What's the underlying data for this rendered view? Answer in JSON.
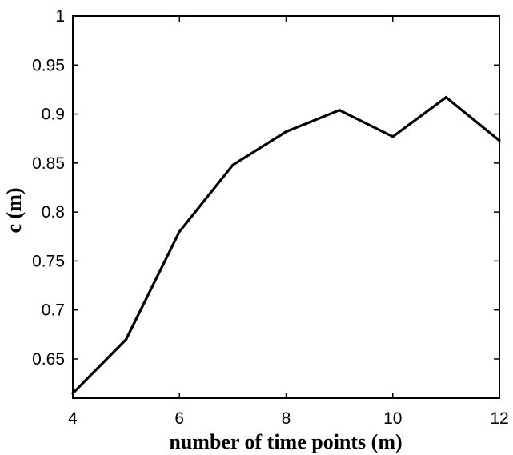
{
  "chart_data": {
    "type": "line",
    "title": "",
    "xlabel": "number of time points (m)",
    "ylabel": "c (m)",
    "xlim": [
      4,
      12
    ],
    "ylim": [
      0.61,
      1
    ],
    "x_ticks": [
      4,
      6,
      8,
      10,
      12
    ],
    "y_ticks": [
      0.65,
      0.7,
      0.75,
      0.8,
      0.85,
      0.9,
      0.95,
      1
    ],
    "x_tick_labels": [
      "4",
      "6",
      "8",
      "10",
      "12"
    ],
    "y_tick_labels": [
      "0.65",
      "0.7",
      "0.75",
      "0.8",
      "0.85",
      "0.9",
      "0.95",
      "1"
    ],
    "grid": false,
    "legend": "none",
    "series": [
      {
        "color": "#000000",
        "x": [
          4,
          5,
          6,
          7,
          8,
          9,
          10,
          11,
          12
        ],
        "y": [
          0.615,
          0.67,
          0.78,
          0.848,
          0.882,
          0.904,
          0.877,
          0.917,
          0.873
        ]
      }
    ]
  }
}
